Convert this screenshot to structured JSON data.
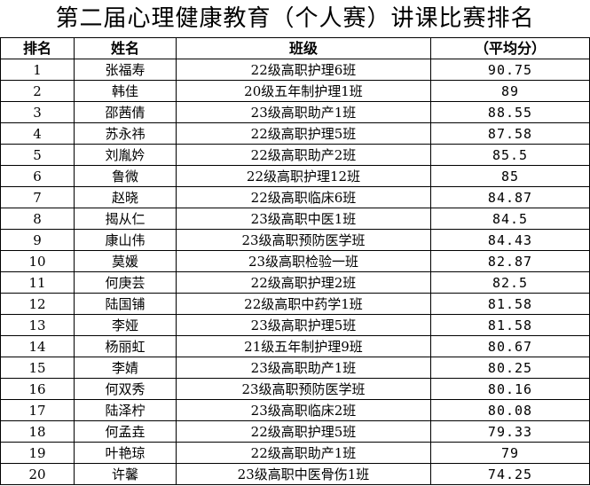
{
  "title": "第二届心理健康教育（个人赛）讲课比赛排名",
  "table": {
    "header": [
      "排名",
      "姓名",
      "班级",
      "（平均分）"
    ],
    "rows": [
      [
        1,
        "张福寿",
        "22级高职护理6班",
        90.75
      ],
      [
        2,
        "韩佳",
        "20级五年制护理1班",
        89
      ],
      [
        3,
        "邵茜倩",
        "23级高职助产1班",
        88.55
      ],
      [
        4,
        "苏永祎",
        "22级高职护理5班",
        87.58
      ],
      [
        5,
        "刘胤妗",
        "22级高职助产2班",
        85.5
      ],
      [
        6,
        "鲁微",
        "22级高职护理12班",
        85
      ],
      [
        7,
        "赵晓",
        "22级高职临床6班",
        84.87
      ],
      [
        8,
        "揭从仁",
        "23级高职中医1班",
        84.5
      ],
      [
        9,
        "康山伟",
        "23级高职预防医学班",
        84.43
      ],
      [
        10,
        "莫媛",
        "23级高职检验一班",
        82.87
      ],
      [
        11,
        "何庚芸",
        "22级高职护理2班",
        82.5
      ],
      [
        12,
        "陆国铺",
        "22级高职中药学1班",
        81.58
      ],
      [
        13,
        "李娅",
        "23级高职护理5班",
        81.58
      ],
      [
        14,
        "杨丽虹",
        "21级五年制护理9班",
        80.67
      ],
      [
        15,
        "李婧",
        "23级高职助产1班",
        80.25
      ],
      [
        16,
        "何双秀",
        "23级高职预防医学班",
        80.16
      ],
      [
        17,
        "陆泽柠",
        "23级高职临床2班",
        80.08
      ],
      [
        18,
        "何孟垚",
        "22级高职护理5班",
        79.33
      ],
      [
        19,
        "叶艳琼",
        "22级高职助产1班",
        79
      ],
      [
        20,
        "许馨",
        "23级高职中医骨伤1班",
        74.25
      ]
    ]
  }
}
